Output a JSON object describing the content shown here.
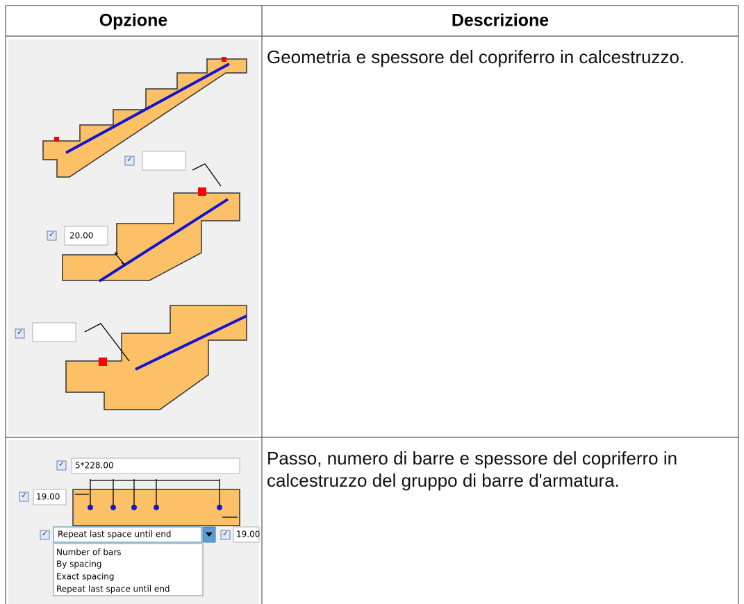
{
  "table": {
    "header": [
      "Opzione",
      "Descrizione"
    ],
    "rows": [
      {
        "option": {
          "field": "20.00"
        },
        "description": "Geometria e spessore del copriferro in calcestruzzo."
      },
      {
        "option": {
          "spacing": "5*228.00",
          "start_cover": "19.00",
          "mode": "Repeat last space until end",
          "end_cover": "19.00",
          "menu": [
            "Number of bars",
            "By spacing",
            "Exact spacing",
            "Repeat last space until end"
          ]
        },
        "description": "Passo, numero di barre e spessore del copriferro in calcestruzzo del gruppo di barre d'armatura."
      }
    ]
  }
}
